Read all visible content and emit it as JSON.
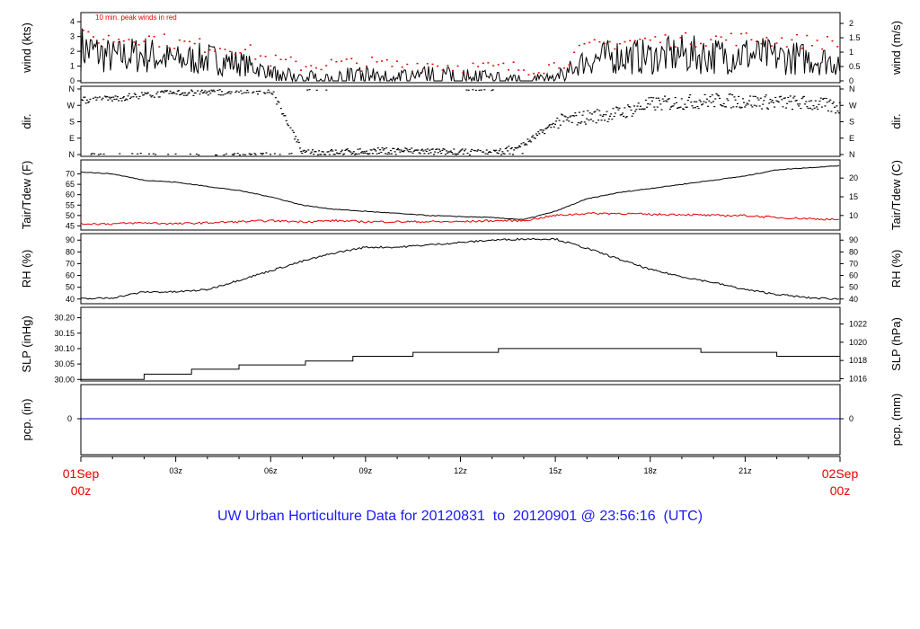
{
  "figure_title": "UW Urban Horticulture Data for 20120831  to  20120901 @ 23:56:16  (UTC)",
  "time_axis": {
    "start_label": [
      "01Sep",
      "00z"
    ],
    "end_label": [
      "02Sep",
      "00z"
    ],
    "tick_labels": [
      "03z",
      "06z",
      "09z",
      "12z",
      "15z",
      "18z",
      "21z"
    ],
    "label_color": "#e60000"
  },
  "colors": {
    "main": "#000000",
    "peak": "#e60000",
    "dew": "#e60000",
    "precip": "#0000cc",
    "title": "#1a1aff"
  },
  "chart_data": [
    {
      "type": "line",
      "id": "wind",
      "ylabel_left": "wind (kts)",
      "ylabel_right": "wind (m/s)",
      "annotation": "10 min. peak winds in red",
      "ylim": [
        0,
        4.5
      ],
      "left_ticks": [
        0,
        1,
        2,
        3,
        4
      ],
      "right_ticks": [
        "0",
        "0.5",
        "1",
        "1.5",
        "2"
      ],
      "x_hours": [
        0,
        1,
        2,
        3,
        4,
        5,
        6,
        7,
        8,
        9,
        10,
        11,
        12,
        13,
        14,
        15,
        16,
        17,
        18,
        19,
        20,
        21,
        22,
        23,
        24
      ],
      "series": [
        {
          "values": [
            2.2,
            1.6,
            1.8,
            1.4,
            1.5,
            1.2,
            0.6,
            0.4,
            0.5,
            0.6,
            0.5,
            0.6,
            0.5,
            0.4,
            0.3,
            0.3,
            1.4,
            1.7,
            1.6,
            1.8,
            1.7,
            1.8,
            1.6,
            1.5,
            1.3
          ]
        }
      ],
      "peak_values": [
        3.0,
        2.9,
        3.0,
        2.6,
        2.4,
        2.3,
        1.4,
        1.1,
        1.2,
        1.2,
        1.1,
        1.2,
        1.0,
        0.9,
        0.9,
        1.1,
        2.3,
        2.7,
        2.8,
        2.8,
        2.9,
        2.9,
        2.8,
        2.7,
        2.6
      ]
    },
    {
      "type": "scatter",
      "id": "dir",
      "ylabel_left": "dir.",
      "ylabel_right": "dir.",
      "left_ticks": [
        "N",
        "E",
        "S",
        "W",
        "N"
      ],
      "right_ticks": [
        "N",
        "E",
        "S",
        "W",
        "N"
      ],
      "x_hours": [
        0,
        1,
        2,
        3,
        4,
        5,
        6,
        7,
        8,
        9,
        10,
        11,
        12,
        13,
        14,
        15,
        16,
        17,
        18,
        19,
        20,
        21,
        22,
        23,
        24
      ],
      "values_deg": [
        300,
        310,
        330,
        340,
        345,
        350,
        355,
        10,
        15,
        20,
        25,
        20,
        15,
        10,
        60,
        180,
        210,
        230,
        280,
        290,
        300,
        295,
        290,
        285,
        260
      ]
    },
    {
      "type": "line",
      "id": "temp",
      "ylabel_left": "Tair/Tdew (F)",
      "ylabel_right": "Tair/Tdew (C)",
      "ylim": [
        43,
        75
      ],
      "left_ticks": [
        45,
        50,
        55,
        60,
        65,
        70
      ],
      "right_ticks": [
        "10",
        "15",
        "20"
      ],
      "x_hours": [
        0,
        1,
        2,
        3,
        4,
        5,
        6,
        7,
        8,
        9,
        10,
        11,
        12,
        13,
        14,
        15,
        16,
        17,
        18,
        19,
        20,
        21,
        22,
        23,
        24
      ],
      "series": [
        {
          "name": "Tair",
          "values": [
            71,
            70,
            67,
            66,
            64,
            62,
            59,
            55,
            53,
            52,
            51,
            50,
            49.5,
            49,
            48,
            52,
            58,
            61,
            63,
            65,
            67,
            69,
            72,
            73,
            74
          ]
        },
        {
          "name": "Tdew",
          "values": [
            46,
            46,
            46.5,
            46,
            46.5,
            47,
            47.5,
            47,
            47.5,
            47,
            47,
            47,
            47,
            47.5,
            47.5,
            50,
            51,
            51,
            50.5,
            50.5,
            50,
            50,
            49,
            48.5,
            48
          ]
        }
      ]
    },
    {
      "type": "line",
      "id": "rh",
      "ylabel_left": "RH (%)",
      "ylabel_right": "RH (%)",
      "ylim": [
        36,
        94
      ],
      "left_ticks": [
        40,
        50,
        60,
        70,
        80,
        90
      ],
      "right_ticks": [
        "40",
        "50",
        "60",
        "70",
        "80",
        "90"
      ],
      "x_hours": [
        0,
        1,
        2,
        3,
        4,
        5,
        6,
        7,
        8,
        9,
        10,
        11,
        12,
        13,
        14,
        15,
        16,
        17,
        18,
        19,
        20,
        21,
        22,
        23,
        24
      ],
      "series": [
        {
          "values": [
            40,
            41,
            46,
            46,
            48,
            56,
            64,
            72,
            79,
            84,
            84,
            86,
            88,
            90,
            91,
            91,
            83,
            74,
            65,
            59,
            54,
            48,
            44,
            41,
            40
          ]
        }
      ]
    },
    {
      "type": "line",
      "id": "slp",
      "ylabel_left": "SLP (inHg)",
      "ylabel_right": "SLP (hPa)",
      "ylim": [
        29.995,
        30.225
      ],
      "left_ticks": [
        "30.00",
        "30.05",
        "30.10",
        "30.15",
        "30.20"
      ],
      "right_ticks": [
        "1016",
        "1018",
        "1020",
        "1022"
      ],
      "x_hours": [
        0,
        2,
        2,
        3.5,
        3.5,
        5,
        5,
        7.1,
        7.1,
        8.6,
        8.6,
        10.5,
        10.5,
        13.2,
        13.2,
        19.6,
        19.6,
        22,
        22,
        24
      ],
      "series": [
        {
          "values": [
            30.0,
            30.0,
            30.017,
            30.017,
            30.033,
            30.033,
            30.047,
            30.047,
            30.06,
            30.06,
            30.075,
            30.075,
            30.088,
            30.088,
            30.1,
            30.1,
            30.088,
            30.088,
            30.075,
            30.075
          ]
        }
      ]
    },
    {
      "type": "line",
      "id": "pcp",
      "ylabel_left": "pcp. (in)",
      "ylabel_right": "pcp. (mm)",
      "left_ticks": [
        "0"
      ],
      "right_ticks": [
        "0"
      ],
      "x_hours": [
        0,
        24
      ],
      "series": [
        {
          "values": [
            0,
            0
          ]
        }
      ]
    }
  ]
}
